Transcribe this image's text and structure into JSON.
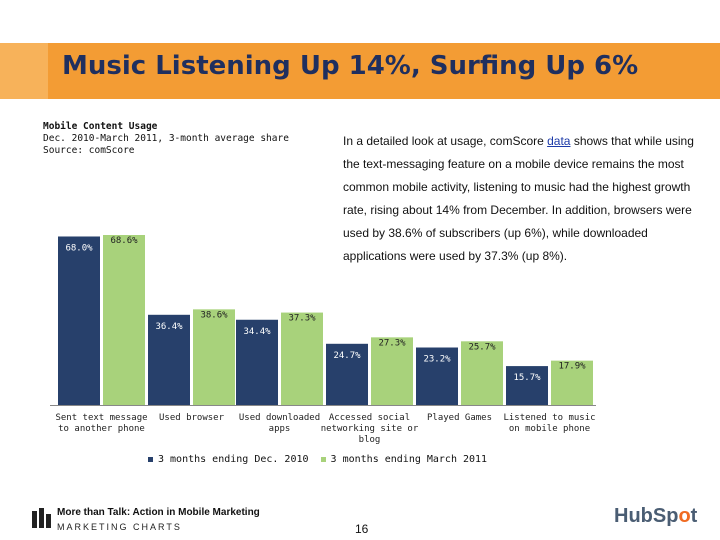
{
  "slide": {
    "title": "Music Listening Up 14%, Surfing Up 6%",
    "page_number": "16"
  },
  "chart_meta": {
    "heading": "Mobile Content Usage",
    "subheading": "Dec. 2010-March 2011, 3-month average share",
    "source": "Source: comScore"
  },
  "paragraph": {
    "line1_pre": "In a detailed look at usage, comScore ",
    "line1_link": "data",
    "line1_post": " shows that while using",
    "line2": "the text-messaging feature on a mobile device remains the most",
    "line3": "common mobile activity, listening to music had the highest growth",
    "line4": "rate, rising about 14% from December. In addition, browsers were",
    "line5": "used by 38.6% of subscribers (up 6%), while downloaded",
    "line6": "applications were used by 37.3% (up 8%)."
  },
  "chart_data": {
    "type": "bar",
    "categories": [
      "Sent text message to another phone",
      "Used browser",
      "Used downloaded apps",
      "Accessed social networking site or blog",
      "Played Games",
      "Listened to music on mobile phone"
    ],
    "series": [
      {
        "name": "3 months ending Dec. 2010",
        "values": [
          68.0,
          36.4,
          34.4,
          24.7,
          23.2,
          15.7
        ],
        "labels": [
          "68.0%",
          "36.4%",
          "34.4%",
          "24.7%",
          "23.2%",
          "15.7%"
        ],
        "color": "#27406b"
      },
      {
        "name": "3 months ending March 2011",
        "values": [
          68.6,
          38.6,
          37.3,
          27.3,
          25.7,
          17.9
        ],
        "labels": [
          "68.6%",
          "38.6%",
          "37.3%",
          "27.3%",
          "25.7%",
          "17.9%"
        ],
        "color": "#a8d27b"
      }
    ],
    "ylim": [
      0,
      80
    ],
    "grid": false,
    "legend_position": "bottom"
  },
  "footer": {
    "line1": "More than Talk: Action in Mobile Marketing",
    "line2": "MARKETING CHARTS",
    "brand_pre": "HubSp",
    "brand_o": "o",
    "brand_post": "t"
  }
}
